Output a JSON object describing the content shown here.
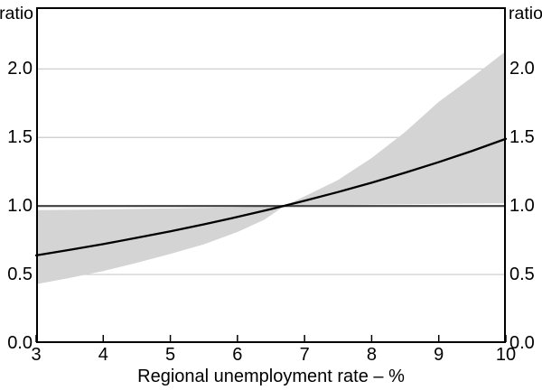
{
  "figure": {
    "unit_label_left": "ratio",
    "unit_label_right": "ratio"
  },
  "chart_data": {
    "type": "line",
    "title": "",
    "xlabel": "Regional unemployment rate – %",
    "ylabel_left": "ratio",
    "ylabel_right": "ratio",
    "xlim": [
      3,
      10
    ],
    "ylim": [
      0,
      2.45
    ],
    "x_ticks": [
      3,
      4,
      5,
      6,
      7,
      8,
      9,
      10
    ],
    "x_tick_labels": [
      "3",
      "4",
      "5",
      "6",
      "7",
      "8",
      "9",
      "10"
    ],
    "y_ticks": [
      0,
      0.5,
      1,
      1.5,
      2
    ],
    "y_tick_labels": [
      "0.0",
      "0.5",
      "1.0",
      "1.5",
      "2.0"
    ],
    "grid": "horizontal-gridlines",
    "legend": "none",
    "reference_line": {
      "y": 1.0
    },
    "series": [
      {
        "name": "estimated-ratio-line",
        "type": "line",
        "points": [
          [
            3,
            0.64
          ],
          [
            3.5,
            0.68
          ],
          [
            4,
            0.722
          ],
          [
            4.5,
            0.768
          ],
          [
            5,
            0.815
          ],
          [
            5.5,
            0.866
          ],
          [
            6,
            0.92
          ],
          [
            6.5,
            0.977
          ],
          [
            7,
            1.038
          ],
          [
            7.5,
            1.102
          ],
          [
            8,
            1.17
          ],
          [
            8.5,
            1.243
          ],
          [
            9,
            1.32
          ],
          [
            9.5,
            1.402
          ],
          [
            10,
            1.49
          ]
        ]
      },
      {
        "name": "confidence-band",
        "type": "band",
        "upper": [
          [
            3,
            0.97
          ],
          [
            4,
            0.975
          ],
          [
            5,
            0.982
          ],
          [
            6,
            0.99
          ],
          [
            6.7,
            1.0
          ],
          [
            7,
            1.07
          ],
          [
            7.5,
            1.19
          ],
          [
            8,
            1.35
          ],
          [
            8.5,
            1.54
          ],
          [
            9,
            1.76
          ],
          [
            9.5,
            1.94
          ],
          [
            10,
            2.13
          ]
        ],
        "lower": [
          [
            3,
            0.43
          ],
          [
            3.5,
            0.475
          ],
          [
            4,
            0.525
          ],
          [
            4.5,
            0.585
          ],
          [
            5,
            0.65
          ],
          [
            5.5,
            0.72
          ],
          [
            6,
            0.81
          ],
          [
            6.4,
            0.9
          ],
          [
            6.7,
            1.0
          ],
          [
            7,
            1.005
          ],
          [
            8,
            1.01
          ],
          [
            9,
            1.015
          ],
          [
            10,
            1.02
          ]
        ]
      }
    ],
    "colors": {
      "line": "#000000",
      "band": "#d4d4d4",
      "gridline": "#c9c9c9",
      "reference_line": "#3f3f3f",
      "axis": "#000000",
      "text": "#000000",
      "background": "#ffffff"
    }
  }
}
